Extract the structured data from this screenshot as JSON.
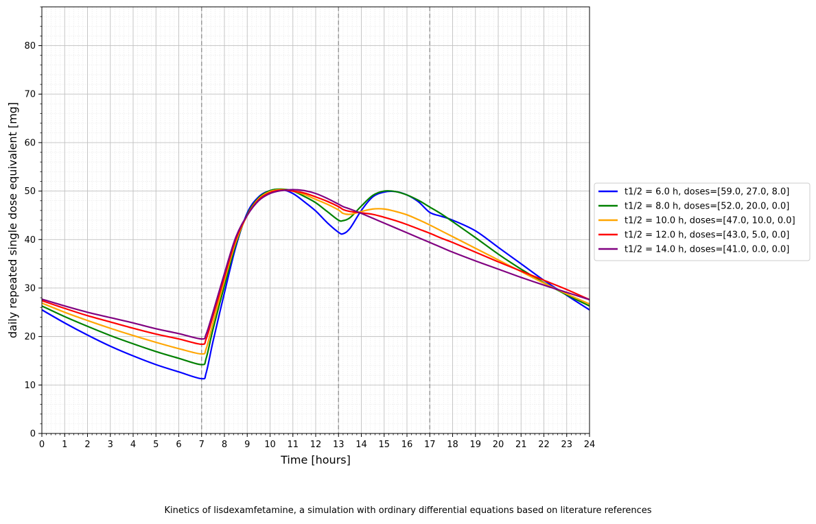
{
  "chart_data": {
    "type": "line",
    "xlabel": "Time [hours]",
    "ylabel": "daily repeated single dose equivalent [mg]",
    "xlim": [
      0,
      24
    ],
    "ylim": [
      0,
      88
    ],
    "x_ticks": [
      0,
      1,
      2,
      3,
      4,
      5,
      6,
      7,
      8,
      9,
      10,
      11,
      12,
      13,
      14,
      15,
      16,
      17,
      18,
      19,
      20,
      21,
      22,
      23,
      24
    ],
    "y_ticks": [
      0,
      10,
      20,
      30,
      40,
      50,
      60,
      70,
      80
    ],
    "grid": true,
    "minor_grid": true,
    "dose_lines": [
      7,
      13,
      17
    ],
    "legend_position": "right-outside",
    "x": [
      0,
      1,
      2,
      3,
      4,
      5,
      6,
      7,
      7.2,
      7.5,
      8,
      8.5,
      9,
      9.5,
      10,
      10.5,
      11,
      11.5,
      12,
      12.5,
      13,
      13.2,
      13.5,
      14,
      14.5,
      15,
      15.5,
      16,
      16.5,
      17,
      17.5,
      18,
      19,
      20,
      21,
      22,
      23,
      24
    ],
    "series": [
      {
        "name": "t1/2 = 6.0 h, doses=[59.0, 27.0, 8.0]",
        "color": "#0000ff",
        "values": [
          25.5,
          22.8,
          20.3,
          18.0,
          16.0,
          14.2,
          12.7,
          11.3,
          12.5,
          19.0,
          29.0,
          38.5,
          45.5,
          48.8,
          50.1,
          50.3,
          49.5,
          47.8,
          45.9,
          43.5,
          41.5,
          41.2,
          42.3,
          46.0,
          48.8,
          49.8,
          49.9,
          49.2,
          47.8,
          45.6,
          44.8,
          44.0,
          41.8,
          38.4,
          35.0,
          31.6,
          28.5,
          25.5
        ]
      },
      {
        "name": "t1/2 = 8.0 h, doses=[52.0, 20.0, 0.0]",
        "color": "#008000",
        "values": [
          26.3,
          24.1,
          22.1,
          20.2,
          18.5,
          16.9,
          15.5,
          14.2,
          15.5,
          21.5,
          30.5,
          39.0,
          45.2,
          48.6,
          50.1,
          50.4,
          50.0,
          48.9,
          47.6,
          45.8,
          44.0,
          43.9,
          44.5,
          46.9,
          49.1,
          50.0,
          49.9,
          49.2,
          48.1,
          46.7,
          45.3,
          43.7,
          40.4,
          37.0,
          33.9,
          31.1,
          28.6,
          26.3
        ]
      },
      {
        "name": "t1/2 = 10.0 h, doses=[47.0, 10.0, 0.0]",
        "color": "#ffa500",
        "values": [
          26.9,
          25.0,
          23.3,
          21.7,
          20.2,
          18.8,
          17.5,
          16.4,
          17.5,
          22.8,
          31.5,
          39.5,
          45.0,
          48.4,
          49.9,
          50.3,
          50.0,
          49.3,
          48.3,
          47.3,
          46.1,
          45.4,
          45.2,
          45.8,
          46.3,
          46.3,
          45.8,
          45.1,
          44.1,
          43.0,
          41.8,
          40.6,
          38.2,
          35.8,
          33.4,
          31.0,
          28.8,
          26.7
        ]
      },
      {
        "name": "t1/2 = 12.0 h, doses=[43.0, 5.0, 0.0]",
        "color": "#ff0000",
        "values": [
          27.4,
          25.8,
          24.3,
          23.0,
          21.7,
          20.5,
          19.5,
          18.4,
          19.5,
          24.2,
          32.3,
          40.0,
          45.0,
          48.2,
          49.7,
          50.2,
          50.0,
          49.6,
          48.8,
          47.9,
          46.8,
          46.2,
          45.8,
          45.5,
          45.2,
          44.6,
          43.9,
          43.1,
          42.2,
          41.3,
          40.3,
          39.4,
          37.4,
          35.4,
          33.5,
          31.6,
          29.7,
          27.6
        ]
      },
      {
        "name": "t1/2 = 14.0 h, doses=[41.0, 0.0, 0.0]",
        "color": "#800080",
        "values": [
          27.7,
          26.3,
          25.0,
          23.9,
          22.8,
          21.6,
          20.6,
          19.5,
          20.5,
          25.0,
          33.0,
          40.5,
          45.0,
          48.0,
          49.5,
          50.1,
          50.3,
          50.1,
          49.5,
          48.5,
          47.3,
          46.8,
          46.3,
          45.4,
          44.4,
          43.4,
          42.4,
          41.4,
          40.4,
          39.4,
          38.4,
          37.4,
          35.6,
          33.9,
          32.2,
          30.6,
          29.1,
          27.6
        ]
      }
    ]
  },
  "caption": "Kinetics of lisdexamfetamine, a simulation with ordinary differential equations based on literature references"
}
